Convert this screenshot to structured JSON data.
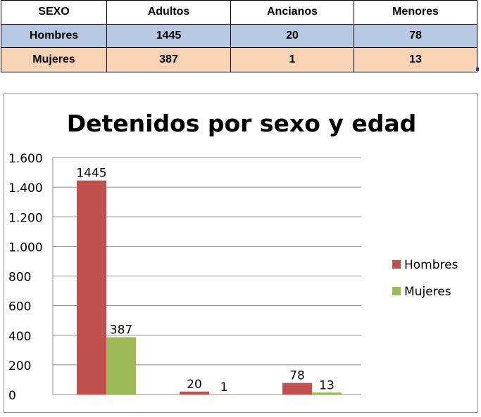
{
  "table": {
    "headers": [
      "SEXO",
      "Adultos",
      "Ancianos",
      "Menores"
    ],
    "rows": [
      {
        "label": "Hombres",
        "values": [
          "1445",
          "20",
          "78"
        ],
        "color": "#b7c9e3"
      },
      {
        "label": "Mujeres",
        "values": [
          "387",
          "1",
          "13"
        ],
        "color": "#f8d3b4"
      }
    ]
  },
  "chart_data": {
    "type": "bar",
    "title": "Detenidos por sexo y edad",
    "categories": [
      "",
      "",
      ""
    ],
    "series": [
      {
        "name": "Hombres",
        "values": [
          1445,
          20,
          78
        ],
        "color": "#c0504d"
      },
      {
        "name": "Mujeres",
        "values": [
          387,
          1,
          13
        ],
        "color": "#9bbb59"
      }
    ],
    "data_labels": [
      [
        "1445",
        "20",
        "78"
      ],
      [
        "387",
        "1",
        "13"
      ]
    ],
    "ylim": [
      0,
      1600
    ],
    "yticks": [
      0,
      200,
      400,
      600,
      800,
      1000,
      1200,
      1400,
      1600
    ],
    "ytick_labels": [
      "0",
      "200",
      "400",
      "600",
      "800",
      "1.000",
      "1.200",
      "1.400",
      "1.600"
    ],
    "grid": true,
    "legend_position": "right"
  }
}
